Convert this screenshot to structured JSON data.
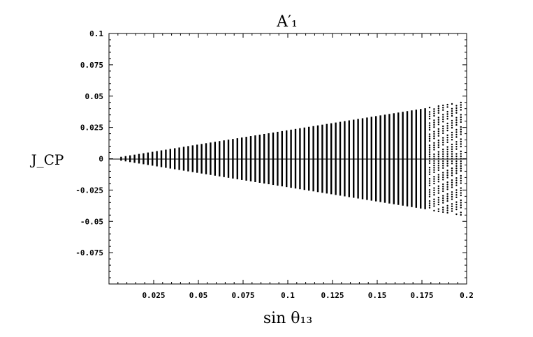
{
  "chart_data": {
    "type": "scatter",
    "title": "A′₁",
    "xlabel": "sin θ₁₃",
    "ylabel": "J_CP",
    "xlim": [
      0,
      0.2
    ],
    "ylim": [
      -0.1,
      0.1
    ],
    "x_ticks": [
      "0.025",
      "0.05",
      "0.075",
      "0.1",
      "0.125",
      "0.15",
      "0.175",
      "0.2"
    ],
    "y_ticks": [
      "0.1",
      "0.075",
      "0.05",
      "0.025",
      "0",
      "-0.025",
      "-0.05",
      "-0.075"
    ],
    "grid": false,
    "legend": "none",
    "envelope": {
      "description_points_x": [
        0.005,
        0.05,
        0.1,
        0.15,
        0.2
      ],
      "max_abs_jcp": [
        0.001,
        0.011,
        0.023,
        0.034,
        0.045
      ]
    },
    "sampling": {
      "x_start": 0.0068,
      "x_end": 0.1975,
      "column_spacing": 0.0025,
      "jcp_per_unit_sin": 0.228
    },
    "colors": {
      "points": "#000000",
      "axes": "#000000",
      "background": "#ffffff"
    }
  }
}
